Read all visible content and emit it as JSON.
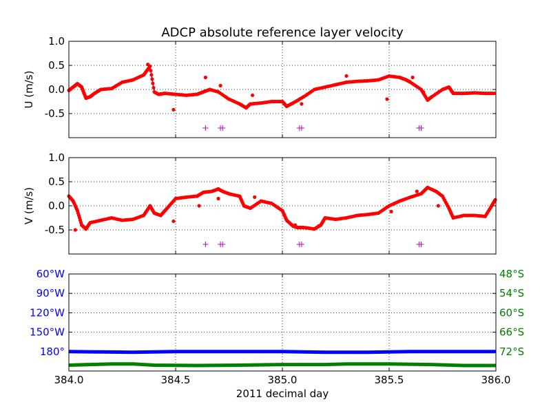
{
  "figure": {
    "title": "ADCP absolute reference layer velocity"
  },
  "chart_data": [
    {
      "type": "line",
      "panel": "u",
      "title": "ADCP absolute reference layer velocity",
      "xlabel": "",
      "ylabel": "U (m/s)",
      "xlim": [
        384.0,
        386.0
      ],
      "ylim": [
        -1.0,
        1.0
      ],
      "yticks": [
        "1.0",
        "0.5",
        "0.0",
        "-0.5"
      ],
      "ytick_values": [
        1.0,
        0.5,
        0.0,
        -0.5
      ],
      "grid": true,
      "colors": {
        "line": "#0000ff",
        "points": "#ff0000",
        "markers": "#bf00bf"
      },
      "x": [
        384.0,
        384.02,
        384.04,
        384.06,
        384.08,
        384.1,
        384.12,
        384.15,
        384.2,
        384.25,
        384.3,
        384.35,
        384.38,
        384.4,
        384.42,
        384.45,
        384.5,
        384.55,
        384.6,
        384.63,
        384.66,
        384.7,
        384.75,
        384.8,
        384.83,
        384.85,
        384.9,
        384.95,
        385.0,
        385.02,
        385.05,
        385.1,
        385.15,
        385.2,
        385.25,
        385.3,
        385.35,
        385.4,
        385.45,
        385.5,
        385.55,
        385.58,
        385.6,
        385.65,
        385.68,
        385.7,
        385.75,
        385.78,
        385.8,
        385.85,
        385.9,
        385.95,
        386.0
      ],
      "values": [
        -0.02,
        0.05,
        0.12,
        0.05,
        -0.18,
        -0.15,
        -0.08,
        0.0,
        0.02,
        0.15,
        0.2,
        0.3,
        0.48,
        -0.05,
        -0.1,
        -0.08,
        -0.1,
        -0.12,
        -0.1,
        -0.05,
        0.0,
        -0.05,
        -0.2,
        -0.3,
        -0.38,
        -0.3,
        -0.28,
        -0.25,
        -0.25,
        -0.35,
        -0.28,
        -0.15,
        0.0,
        0.05,
        0.1,
        0.15,
        0.17,
        0.18,
        0.2,
        0.28,
        0.25,
        0.2,
        0.15,
        0.0,
        -0.22,
        -0.15,
        0.0,
        0.05,
        -0.08,
        -0.08,
        -0.07,
        -0.08,
        -0.08
      ],
      "outliers": [
        [
          384.37,
          0.52
        ],
        [
          384.49,
          -0.42
        ],
        [
          384.64,
          0.25
        ],
        [
          384.71,
          0.08
        ],
        [
          384.86,
          -0.12
        ],
        [
          385.09,
          -0.3
        ],
        [
          385.3,
          0.28
        ],
        [
          385.49,
          -0.2
        ],
        [
          385.61,
          0.25
        ],
        [
          385.66,
          -0.05
        ]
      ],
      "markers_x": [
        384.64,
        384.71,
        384.72,
        385.08,
        385.09,
        385.64,
        385.65
      ],
      "marker_y": -0.8
    },
    {
      "type": "line",
      "panel": "v",
      "xlabel": "",
      "ylabel": "V (m/s)",
      "xlim": [
        384.0,
        386.0
      ],
      "ylim": [
        -1.0,
        1.0
      ],
      "yticks": [
        "1.0",
        "0.5",
        "0.0",
        "-0.5"
      ],
      "ytick_values": [
        1.0,
        0.5,
        0.0,
        -0.5
      ],
      "grid": true,
      "colors": {
        "line": "#0000ff",
        "points": "#ff0000",
        "markers": "#bf00bf"
      },
      "x": [
        384.0,
        384.02,
        384.04,
        384.06,
        384.08,
        384.1,
        384.15,
        384.2,
        384.25,
        384.3,
        384.35,
        384.38,
        384.4,
        384.43,
        384.46,
        384.5,
        384.55,
        384.6,
        384.63,
        384.67,
        384.7,
        384.72,
        384.75,
        384.8,
        384.82,
        384.85,
        384.9,
        384.95,
        385.0,
        385.02,
        385.05,
        385.07,
        385.1,
        385.15,
        385.18,
        385.2,
        385.25,
        385.3,
        385.35,
        385.4,
        385.45,
        385.5,
        385.55,
        385.6,
        385.65,
        385.68,
        385.72,
        385.75,
        385.78,
        385.8,
        385.85,
        385.9,
        385.95,
        385.98,
        386.0
      ],
      "values": [
        0.2,
        0.1,
        -0.1,
        -0.4,
        -0.48,
        -0.35,
        -0.3,
        -0.25,
        -0.3,
        -0.28,
        -0.2,
        0.0,
        -0.15,
        -0.2,
        -0.05,
        0.15,
        0.18,
        0.2,
        0.28,
        0.3,
        0.35,
        0.3,
        0.25,
        0.2,
        0.0,
        -0.05,
        0.1,
        0.05,
        -0.1,
        -0.3,
        -0.42,
        -0.45,
        -0.45,
        -0.48,
        -0.4,
        -0.25,
        -0.28,
        -0.25,
        -0.2,
        -0.18,
        -0.15,
        0.0,
        0.1,
        0.18,
        0.25,
        0.38,
        0.3,
        0.2,
        -0.05,
        -0.25,
        -0.2,
        -0.2,
        -0.22,
        0.0,
        0.15
      ],
      "outliers": [
        [
          384.03,
          -0.5
        ],
        [
          384.49,
          -0.32
        ],
        [
          384.61,
          0.0
        ],
        [
          384.7,
          0.15
        ],
        [
          384.87,
          0.18
        ],
        [
          385.06,
          -0.4
        ],
        [
          385.17,
          -0.42
        ],
        [
          385.51,
          -0.12
        ],
        [
          385.63,
          0.3
        ],
        [
          385.73,
          0.0
        ]
      ],
      "markers_x": [
        384.64,
        384.71,
        384.72,
        385.08,
        385.09,
        385.64,
        385.65
      ],
      "marker_y": -0.8
    },
    {
      "type": "scatter",
      "panel": "position",
      "xlabel": "2011 decimal day",
      "xlim": [
        384.0,
        386.0
      ],
      "xticks": [
        "384.0",
        "384.5",
        "385.0",
        "385.5",
        "386.0"
      ],
      "xtick_values": [
        384.0,
        384.5,
        385.0,
        385.5,
        386.0
      ],
      "ylim_left": [
        -210,
        -60
      ],
      "ylim_right": [
        -78,
        -48
      ],
      "yticks_left": [
        "60°W",
        "90°W",
        "120°W",
        "150°W",
        "180°"
      ],
      "ytick_values_left": [
        -60,
        -90,
        -120,
        -150,
        -180
      ],
      "yticks_right": [
        "48°S",
        "54°S",
        "60°S",
        "66°S",
        "72°S"
      ],
      "ytick_values_right": [
        -48,
        -54,
        -60,
        -66,
        -72
      ],
      "grid": true,
      "colors": {
        "lon": "#0000ff",
        "lat": "#008000",
        "left_axis": "#0000ff",
        "right_axis": "#008000"
      },
      "series": [
        {
          "label_axis": "left",
          "x": [
            384.0,
            384.15,
            384.3,
            384.5,
            384.7,
            384.9,
            385.0,
            385.2,
            385.4,
            385.6,
            385.8,
            386.0
          ],
          "values": [
            -180,
            -180.5,
            -181,
            -180,
            -180,
            -180,
            -180,
            -181,
            -181,
            -180,
            -180,
            -180
          ]
        },
        {
          "label_axis": "right",
          "x": [
            384.0,
            384.1,
            384.2,
            384.3,
            384.4,
            384.6,
            384.8,
            385.0,
            385.2,
            385.3,
            385.5,
            385.7,
            385.85,
            386.0
          ],
          "values": [
            -76.2,
            -76.0,
            -75.8,
            -75.8,
            -76.2,
            -76.3,
            -76.2,
            -76.0,
            -76.0,
            -75.8,
            -75.8,
            -76.0,
            -76.3,
            -76.3
          ]
        }
      ]
    }
  ]
}
